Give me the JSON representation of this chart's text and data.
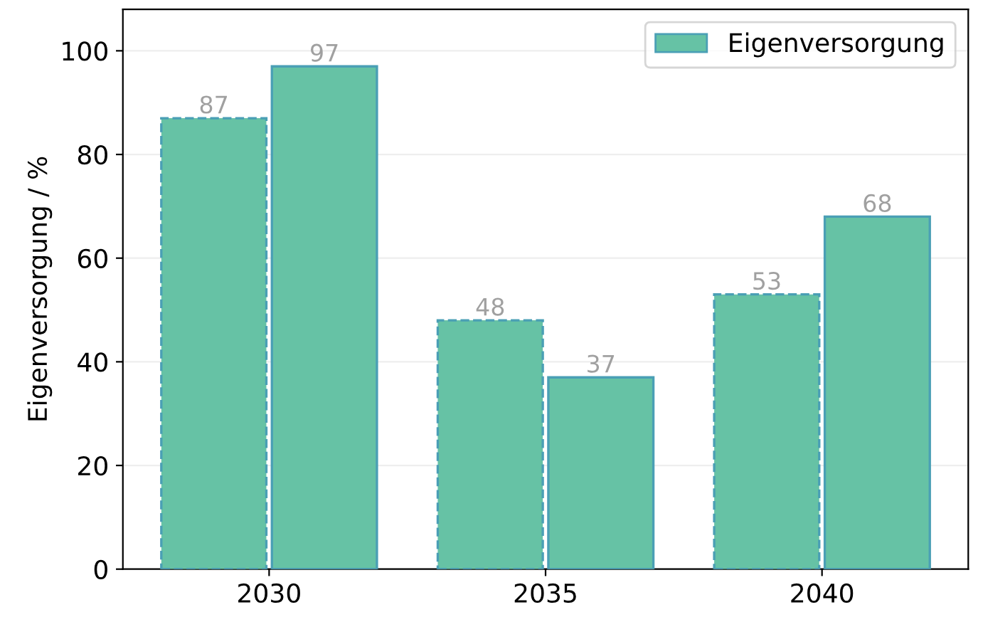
{
  "chart_data": {
    "type": "bar",
    "ylabel": "Eigenversorgung / %",
    "categories": [
      "2030",
      "2035",
      "2040"
    ],
    "series": [
      {
        "color": "#66c2a5",
        "line_style": "dashed",
        "values": [
          87,
          48,
          53
        ]
      },
      {
        "name": "Eigenversorgung",
        "color": "#66c2a5",
        "line_style": "solid",
        "values": [
          97,
          37,
          68
        ]
      }
    ],
    "ylim": [
      0,
      108
    ],
    "yticks": [
      0,
      20,
      40,
      60,
      80,
      100
    ],
    "grid": "y",
    "legend": "top right",
    "data_labels": true
  }
}
